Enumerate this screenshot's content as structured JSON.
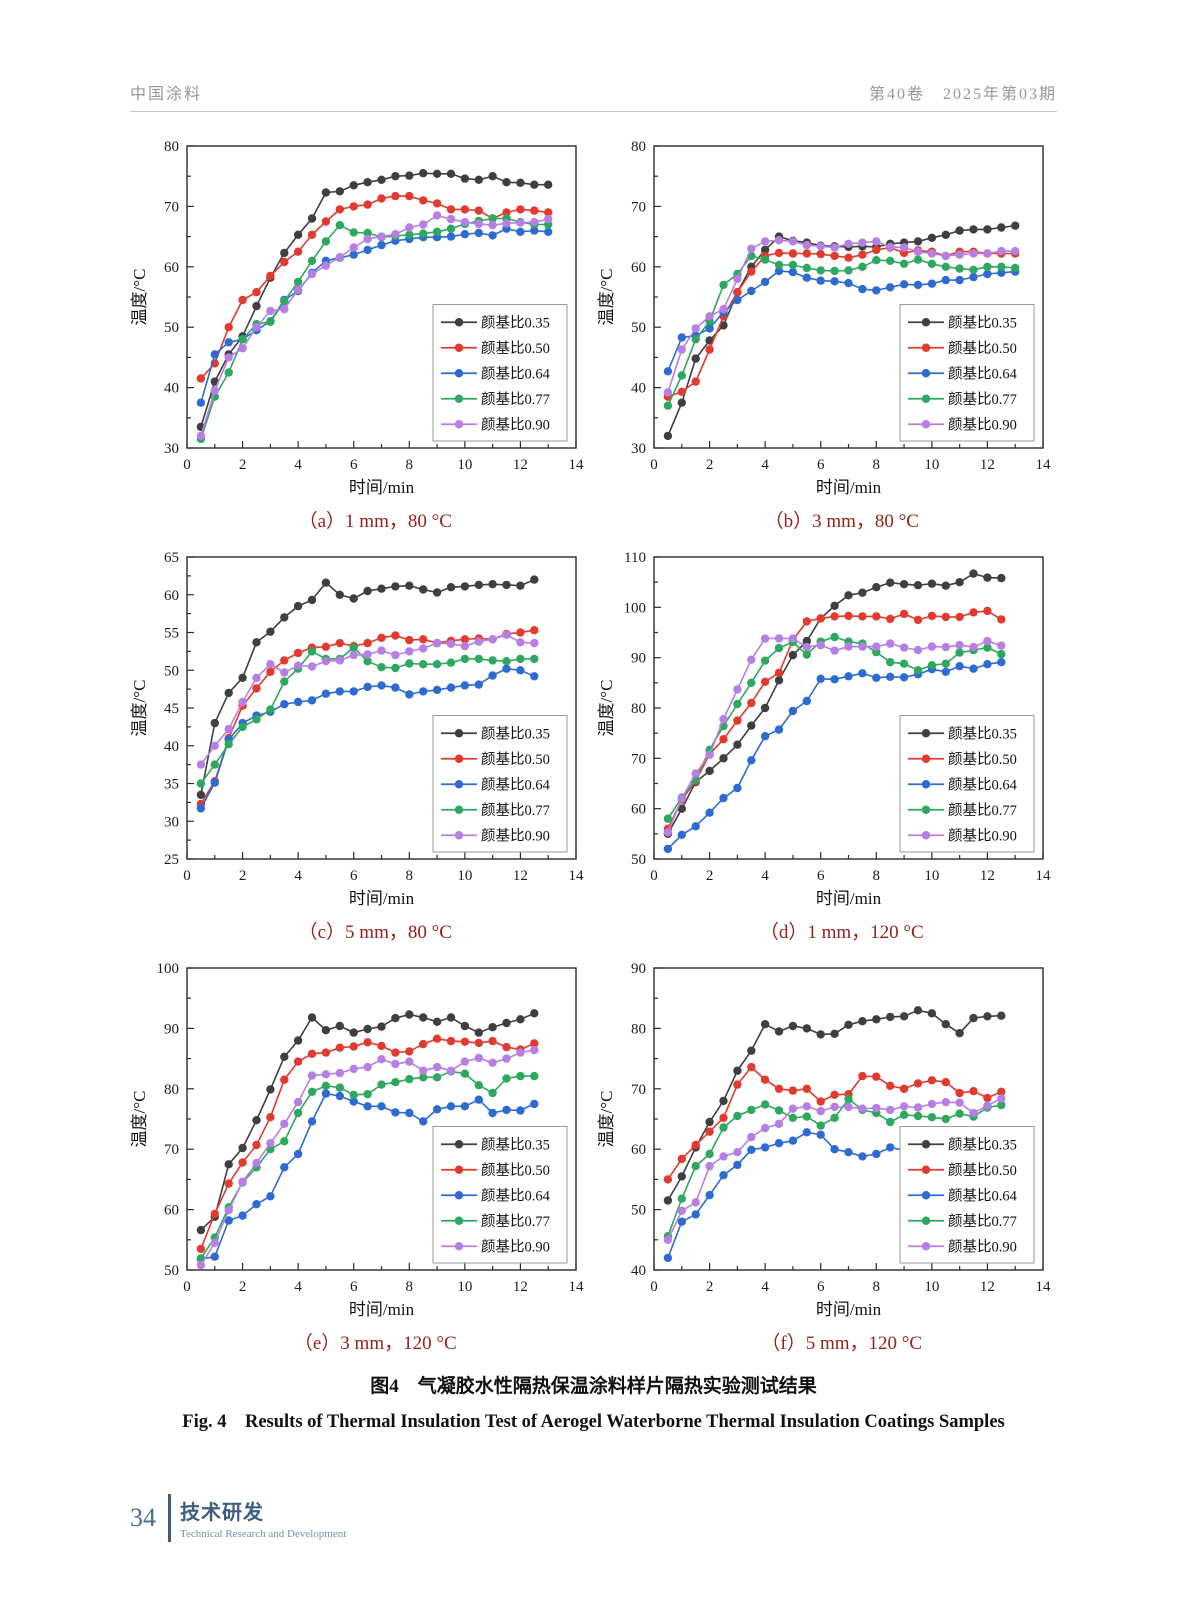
{
  "header": {
    "journal": "中国涂料",
    "issue": "第40卷　2025年第03期"
  },
  "figure": {
    "caption_zh": "图4　气凝胶水性隔热保温涂料样片隔热实验测试结果",
    "caption_en": "Fig. 4　Results of Thermal Insulation Test of Aerogel Waterborne Thermal Insulation Coatings Samples"
  },
  "footer": {
    "page_number": "34",
    "section_zh": "技术研发",
    "section_en": "Technical Research and Development"
  },
  "colors": {
    "series": [
      "#3f3f3f",
      "#e13a2e",
      "#2d6bd2",
      "#2ea85f",
      "#b77ee3"
    ],
    "caption": "#94211a",
    "axis": "#2b2b2b"
  },
  "chart_data": [
    {
      "id": "a",
      "type": "line",
      "caption": "（a）1 mm，80 °C",
      "xlabel": "时间/min",
      "ylabel": "温度/°C",
      "xlim": [
        0,
        14
      ],
      "ylim": [
        30,
        80
      ],
      "xtick": 2,
      "ytick": 10,
      "x_start": 0.5,
      "x_step": 0.5,
      "legend_position": "bottom-right",
      "grid": false,
      "series": [
        {
          "name": "颜基比0.35",
          "color_index": 0,
          "values": [
            33.5,
            41,
            45.5,
            48.5,
            53.5,
            58.2,
            62.3,
            65.3,
            68,
            72.3,
            72.5,
            73.5,
            74,
            74.4,
            75,
            75.1,
            75.5,
            75.4,
            75.4,
            74.6,
            74.4,
            75,
            74,
            73.9,
            73.6,
            73.6
          ]
        },
        {
          "name": "颜基比0.50",
          "color_index": 1,
          "values": [
            41.5,
            44,
            50,
            54.5,
            55.8,
            58.5,
            60.8,
            62.5,
            65.3,
            67.5,
            69.5,
            70,
            70.3,
            71.3,
            71.7,
            71.7,
            71,
            70.5,
            69.5,
            69.5,
            69.3,
            68,
            69,
            69.5,
            69.3,
            69
          ]
        },
        {
          "name": "颜基比0.64",
          "color_index": 2,
          "values": [
            37.5,
            45.5,
            47.5,
            48,
            49.5,
            51,
            54.5,
            56,
            59,
            61,
            61.5,
            62,
            62.8,
            63.6,
            64.3,
            64.6,
            64.9,
            64.9,
            65,
            65.4,
            65.6,
            65.2,
            66.3,
            65.8,
            66,
            65.8
          ]
        },
        {
          "name": "颜基比0.77",
          "color_index": 3,
          "values": [
            31.5,
            38.5,
            42.5,
            48,
            50.5,
            50.9,
            54.3,
            57.5,
            61,
            64.2,
            66.9,
            65.7,
            65.6,
            64.9,
            65.1,
            65.3,
            65.5,
            65.8,
            66.3,
            67.1,
            67.6,
            68,
            68,
            67.4,
            67,
            67
          ]
        },
        {
          "name": "颜基比0.90",
          "color_index": 4,
          "values": [
            32,
            39.5,
            45,
            46.5,
            50,
            52.7,
            53,
            56.2,
            58.8,
            60.2,
            61.6,
            63.2,
            64.6,
            65,
            65.4,
            66.5,
            67,
            68.5,
            67.9,
            67.4,
            67.1,
            66.9,
            67.2,
            67.3,
            67.4,
            67.9
          ]
        }
      ]
    },
    {
      "id": "b",
      "type": "line",
      "caption": "（b）3 mm，80 °C",
      "xlabel": "时间/min",
      "ylabel": "温度/°C",
      "xlim": [
        0,
        14
      ],
      "ylim": [
        30,
        80
      ],
      "xtick": 2,
      "ytick": 10,
      "x_start": 0.5,
      "x_step": 0.5,
      "legend_position": "bottom-right",
      "grid": false,
      "series": [
        {
          "name": "颜基比0.35",
          "color_index": 0,
          "values": [
            32,
            37.5,
            44.8,
            47.8,
            50.3,
            55.8,
            60,
            62.8,
            65,
            64.3,
            64,
            63.5,
            63.4,
            63.3,
            63.4,
            63.3,
            63.8,
            64,
            64.2,
            64.8,
            65.3,
            66,
            66.2,
            66.2,
            66.5,
            66.8
          ]
        },
        {
          "name": "颜基比0.50",
          "color_index": 1,
          "values": [
            38.5,
            39.3,
            41,
            46.3,
            51.8,
            55.8,
            59.2,
            61.8,
            62.3,
            62.2,
            62.2,
            62.1,
            61.8,
            61.5,
            62,
            62.8,
            63.2,
            62.3,
            62.7,
            62.5,
            61.8,
            62.5,
            62.5,
            62.2,
            62.2,
            62.2
          ]
        },
        {
          "name": "颜基比0.64",
          "color_index": 2,
          "values": [
            42.7,
            48.3,
            48.6,
            49.8,
            52.5,
            54.5,
            56,
            57.5,
            59.3,
            59.1,
            58.2,
            57.7,
            57.6,
            57.3,
            56.3,
            56.1,
            56.6,
            57.1,
            57,
            57.2,
            57.8,
            57.8,
            58.3,
            58.8,
            59,
            59.2
          ]
        },
        {
          "name": "颜基比0.77",
          "color_index": 3,
          "values": [
            37,
            42,
            48,
            51,
            57,
            58.8,
            61.8,
            61.2,
            60.3,
            60.3,
            59.8,
            59.4,
            59.3,
            59.4,
            60,
            61.1,
            61,
            60.5,
            61.2,
            60.5,
            60,
            59.7,
            59.5,
            60,
            60,
            59.8
          ]
        },
        {
          "name": "颜基比0.90",
          "color_index": 4,
          "values": [
            39.2,
            46.3,
            49.8,
            51.8,
            53,
            58,
            63,
            64.2,
            64.4,
            64.2,
            63.6,
            63.4,
            63.2,
            63.8,
            64,
            64.2,
            63.3,
            63.2,
            62.5,
            62.2,
            61.8,
            62,
            62.2,
            62.2,
            62.6,
            62.6
          ]
        }
      ]
    },
    {
      "id": "c",
      "type": "line",
      "caption": "（c）5 mm，80 °C",
      "xlabel": "时间/min",
      "ylabel": "温度/°C",
      "xlim": [
        0,
        14
      ],
      "ylim": [
        25,
        65
      ],
      "xtick": 2,
      "ytick": 5,
      "x_start": 0.5,
      "x_step": 0.5,
      "legend_position": "bottom-right",
      "grid": false,
      "series": [
        {
          "name": "颜基比0.35",
          "color_index": 0,
          "values": [
            33.5,
            43,
            47,
            49,
            53.7,
            55.1,
            57,
            58.5,
            59.3,
            61.6,
            60,
            59.5,
            60.5,
            60.8,
            61.1,
            61.2,
            60.7,
            60.3,
            61,
            61.1,
            61.3,
            61.4,
            61.3,
            61.2,
            62
          ]
        },
        {
          "name": "颜基比0.50",
          "color_index": 1,
          "values": [
            32.3,
            35.3,
            41,
            45.3,
            47.6,
            49.8,
            51.3,
            52.3,
            53,
            53.1,
            53.6,
            53.2,
            53.6,
            54.3,
            54.6,
            54,
            54.1,
            53.6,
            53.9,
            54.1,
            54.2,
            54.1,
            54.8,
            55,
            55.3
          ]
        },
        {
          "name": "颜基比0.64",
          "color_index": 2,
          "values": [
            31.7,
            35.1,
            40.8,
            43,
            44,
            44.5,
            45.5,
            45.8,
            46,
            46.9,
            47.2,
            47.2,
            47.8,
            48,
            47.7,
            46.8,
            47.2,
            47.4,
            47.7,
            48,
            48.1,
            49.3,
            50.2,
            50,
            49.2
          ]
        },
        {
          "name": "颜基比0.77",
          "color_index": 3,
          "values": [
            35,
            37.5,
            40.2,
            42.5,
            43.5,
            44.8,
            48.5,
            50.2,
            52.5,
            51.5,
            51.5,
            53,
            51.2,
            50.4,
            50.3,
            50.9,
            50.8,
            50.8,
            51,
            51.5,
            51.5,
            51.3,
            51.2,
            51.5,
            51.5
          ]
        },
        {
          "name": "颜基比0.90",
          "color_index": 4,
          "values": [
            37.5,
            40,
            42.2,
            45.8,
            49,
            50.8,
            49.7,
            50.6,
            50.5,
            51.2,
            51.3,
            52,
            52.1,
            52.6,
            52,
            52.5,
            52.9,
            53.6,
            53.5,
            53.2,
            53.8,
            54.1,
            54.7,
            53.7,
            53.6
          ]
        }
      ]
    },
    {
      "id": "d",
      "type": "line",
      "caption": "（d）1 mm，120 °C",
      "xlabel": "时间/min",
      "ylabel": "温度/°C",
      "xlim": [
        0,
        14
      ],
      "ylim": [
        50,
        110
      ],
      "xtick": 2,
      "ytick": 10,
      "x_start": 0.5,
      "x_step": 0.5,
      "legend_position": "bottom-right",
      "grid": false,
      "series": [
        {
          "name": "颜基比0.35",
          "color_index": 0,
          "values": [
            55,
            60,
            65.3,
            67.5,
            70,
            72.7,
            76.5,
            80,
            85.5,
            90.5,
            93.3,
            97.8,
            100.3,
            102.4,
            102.9,
            104,
            104.9,
            104.6,
            104.4,
            104.7,
            104.3,
            105,
            106.7,
            105.9,
            105.8
          ]
        },
        {
          "name": "颜基比0.50",
          "color_index": 1,
          "values": [
            56,
            61.8,
            65.5,
            70.8,
            73.8,
            77.5,
            81,
            85.2,
            87,
            93.5,
            97.2,
            97.8,
            98.2,
            98.3,
            98.2,
            98.2,
            97.7,
            98.7,
            97.5,
            98.3,
            98.1,
            98.1,
            99,
            99.3,
            97.6
          ]
        },
        {
          "name": "颜基比0.64",
          "color_index": 2,
          "values": [
            52,
            54.8,
            56.5,
            59.2,
            62.1,
            64.1,
            69.6,
            74.4,
            75.7,
            79.4,
            81.4,
            85.8,
            85.7,
            86.3,
            86.9,
            86,
            86.2,
            86.1,
            86.7,
            87.7,
            87.2,
            88.3,
            87.8,
            88.7,
            89.1
          ]
        },
        {
          "name": "颜基比0.77",
          "color_index": 3,
          "values": [
            58,
            62.2,
            65.8,
            71.7,
            76.4,
            80.8,
            85,
            89.4,
            91.9,
            93.1,
            90.6,
            93.2,
            94.1,
            93.2,
            92.8,
            91.1,
            89.1,
            88.8,
            87.5,
            88.5,
            88.8,
            91,
            91.5,
            92,
            90.7
          ]
        },
        {
          "name": "颜基比0.90",
          "color_index": 4,
          "values": [
            55.3,
            62,
            67,
            70.7,
            77.8,
            83.7,
            89.6,
            93.8,
            93.8,
            93.8,
            92.1,
            92.5,
            91.4,
            92.2,
            92.2,
            92.2,
            92.8,
            92,
            91.5,
            92.2,
            92.1,
            92.5,
            92.1,
            93.3,
            92.4
          ]
        }
      ]
    },
    {
      "id": "e",
      "type": "line",
      "caption": "（e）3 mm，120 °C",
      "xlabel": "时间/min",
      "ylabel": "温度/°C",
      "xlim": [
        0,
        14
      ],
      "ylim": [
        50,
        100
      ],
      "xtick": 2,
      "ytick": 10,
      "x_start": 0.5,
      "x_step": 0.5,
      "legend_position": "bottom-right",
      "grid": false,
      "series": [
        {
          "name": "颜基比0.35",
          "color_index": 0,
          "values": [
            56.6,
            58.8,
            67.5,
            70.2,
            74.8,
            79.9,
            85.3,
            88,
            91.8,
            89.7,
            90.4,
            89.3,
            89.9,
            90.3,
            91.7,
            92.3,
            91.8,
            91.1,
            91.8,
            90.4,
            89.3,
            90.2,
            90.9,
            91.5,
            92.5
          ]
        },
        {
          "name": "颜基比0.50",
          "color_index": 1,
          "values": [
            53.5,
            59.3,
            64.3,
            67.8,
            70.7,
            75.3,
            81.5,
            84.5,
            85.8,
            86,
            86.8,
            87,
            87.7,
            87.1,
            86,
            86.2,
            87.4,
            88.3,
            87.9,
            87.8,
            87.6,
            87.9,
            86.9,
            86.5,
            87.5
          ]
        },
        {
          "name": "颜基比0.64",
          "color_index": 2,
          "values": [
            51.8,
            52.2,
            58.2,
            59,
            60.9,
            62.2,
            67,
            69.2,
            74.6,
            79.2,
            78.8,
            77.9,
            77.1,
            77.1,
            76.1,
            76,
            74.6,
            76.6,
            77.1,
            77.1,
            78.2,
            76,
            76.5,
            76.4,
            77.5
          ]
        },
        {
          "name": "颜基比0.77",
          "color_index": 3,
          "values": [
            51.9,
            55.4,
            60.4,
            64.5,
            67,
            70,
            71.3,
            76,
            79.5,
            80.5,
            80.2,
            79,
            79.1,
            80.7,
            81.1,
            81.6,
            81.9,
            81.9,
            82.9,
            82.5,
            80.6,
            79.3,
            81.7,
            82.1,
            82.1
          ]
        },
        {
          "name": "颜基比0.90",
          "color_index": 4,
          "values": [
            50.8,
            54.5,
            59.9,
            64.6,
            67.7,
            71,
            74.2,
            77.8,
            82.2,
            82.4,
            82.6,
            83.3,
            83.6,
            84.9,
            84.1,
            84.5,
            83,
            83.6,
            83,
            84.5,
            85.1,
            84.3,
            85,
            86,
            86.4
          ]
        }
      ]
    },
    {
      "id": "f",
      "type": "line",
      "caption": "（f）5 mm，120 °C",
      "xlabel": "时间/min",
      "ylabel": "温度/°C",
      "xlim": [
        0,
        14
      ],
      "ylim": [
        40,
        90
      ],
      "xtick": 2,
      "ytick": 10,
      "x_start": 0.5,
      "x_step": 0.5,
      "legend_position": "bottom-right",
      "grid": false,
      "series": [
        {
          "name": "颜基比0.35",
          "color_index": 0,
          "values": [
            51.5,
            55.5,
            60.3,
            64.5,
            68,
            73,
            76.3,
            80.7,
            79.5,
            80.4,
            80,
            79,
            79.1,
            80.6,
            81.2,
            81.5,
            81.9,
            82,
            83,
            82.5,
            80.7,
            79.2,
            81.7,
            82,
            82.1
          ]
        },
        {
          "name": "颜基比0.50",
          "color_index": 1,
          "values": [
            55,
            58.4,
            60.7,
            62.9,
            65.2,
            70.7,
            73.6,
            71.5,
            70,
            69.7,
            70,
            67.9,
            69,
            69.1,
            72.1,
            72,
            70.5,
            70,
            70.9,
            71.4,
            71.1,
            69.3,
            69.6,
            68.5,
            69.5
          ]
        },
        {
          "name": "颜基比0.64",
          "color_index": 2,
          "values": [
            42,
            48,
            49.2,
            52.4,
            55.7,
            57.4,
            59.9,
            60.3,
            61,
            61.4,
            62.8,
            62.4,
            60,
            59.5,
            58.8,
            59.2,
            60.3,
            59.8,
            59.6,
            58.7,
            59.5,
            60.7,
            61,
            61.1,
            61.2
          ]
        },
        {
          "name": "颜基比0.77",
          "color_index": 3,
          "values": [
            45.6,
            51.8,
            57.2,
            59.2,
            63.6,
            65.5,
            66.5,
            67.4,
            66.4,
            65.2,
            65.4,
            63.9,
            65.2,
            68.3,
            66.5,
            66,
            64.5,
            65.7,
            65.5,
            65.3,
            65,
            65.9,
            65.4,
            66.9,
            67.3
          ]
        },
        {
          "name": "颜基比0.90",
          "color_index": 4,
          "values": [
            45,
            49.8,
            51.2,
            57.2,
            58.8,
            59.5,
            62,
            63.5,
            64.2,
            66.7,
            67.1,
            66.3,
            67,
            67,
            66.7,
            66.8,
            66.5,
            67.1,
            66.9,
            67.5,
            67.8,
            67.7,
            66,
            67.2,
            68.4
          ]
        }
      ]
    }
  ]
}
